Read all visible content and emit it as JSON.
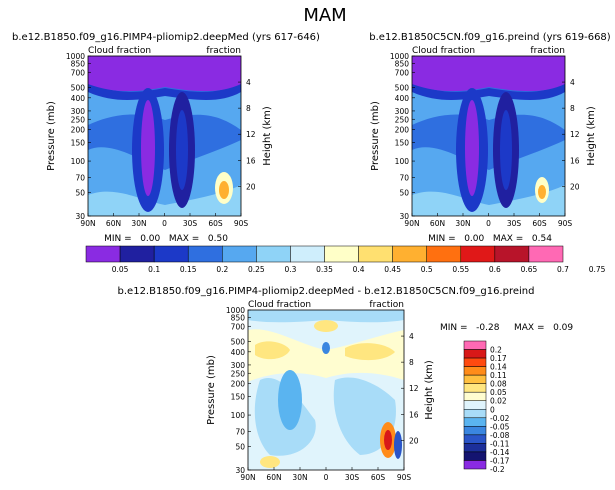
{
  "page_title": "MAM",
  "colors": {
    "main": [
      "#8a2be2",
      "#2020a0",
      "#1c39c8",
      "#2f6fe0",
      "#56a8f0",
      "#8fd3f7",
      "#cfeefc",
      "#ffffc8",
      "#ffe070",
      "#ffb030",
      "#ff7010",
      "#e01818",
      "#b8142a",
      "#ff69b4"
    ],
    "diff": [
      "#8a2be2",
      "#141470",
      "#1c2f9a",
      "#2a55c8",
      "#3a86e0",
      "#5ab4f0",
      "#a8dcf8",
      "#e0f4fc",
      "#fffdd0",
      "#ffe680",
      "#ffc040",
      "#ff8c1a",
      "#ff4a10",
      "#d81818",
      "#ff69b4"
    ]
  },
  "chart_data": [
    {
      "type": "heatmap",
      "title": "b.e12.B1850.f09_g16.PIMP4-pliomip2.deepMed (yrs 617-646)",
      "left_label": "Cloud fraction",
      "right_label": "fraction",
      "ylabel": "Pressure (mb)",
      "ylabel_right": "Height (km)",
      "x_ticks": [
        "90N",
        "60N",
        "30N",
        "0",
        "30S",
        "60S",
        "90S"
      ],
      "y_ticks": [
        "1000",
        "850",
        "700",
        "500",
        "400",
        "300",
        "250",
        "200",
        "150",
        "100",
        "70",
        "50",
        "30"
      ],
      "height_ticks": [
        "4",
        "8",
        "12",
        "16",
        "20"
      ],
      "stats": "MIN =   0.00   MAX =   0.50",
      "min": 0.0,
      "max": 0.5
    },
    {
      "type": "heatmap",
      "title": "b.e12.B1850C5CN.f09_g16.preind (yrs 619-668)",
      "left_label": "Cloud fraction",
      "right_label": "fraction",
      "ylabel": "Pressure (mb)",
      "ylabel_right": "Height (km)",
      "x_ticks": [
        "90N",
        "60N",
        "30N",
        "0",
        "30S",
        "60S",
        "90S"
      ],
      "y_ticks": [
        "1000",
        "850",
        "700",
        "500",
        "400",
        "300",
        "250",
        "200",
        "150",
        "100",
        "70",
        "50",
        "30"
      ],
      "height_ticks": [
        "4",
        "8",
        "12",
        "16",
        "20"
      ],
      "stats": "MIN =   0.00   MAX =   0.54",
      "min": 0.0,
      "max": 0.54
    },
    {
      "type": "heatmap",
      "title": "b.e12.B1850.f09_g16.PIMP4-pliomip2.deepMed - b.e12.B1850C5CN.f09_g16.preind",
      "left_label": "Cloud fraction",
      "right_label": "fraction",
      "ylabel": "Pressure (mb)",
      "ylabel_right": "Height (km)",
      "x_ticks": [
        "90N",
        "60N",
        "30N",
        "0",
        "30S",
        "60S",
        "90S"
      ],
      "y_ticks": [
        "1000",
        "850",
        "700",
        "500",
        "400",
        "300",
        "250",
        "200",
        "150",
        "100",
        "70",
        "50",
        "30"
      ],
      "height_ticks": [
        "4",
        "8",
        "12",
        "16",
        "20"
      ],
      "stats_min": "MIN =   -0.28",
      "stats_max": "MAX =   0.09",
      "min": -0.28,
      "max": 0.09
    }
  ],
  "main_colorbar": {
    "labels": [
      "0.05",
      "0.1",
      "0.15",
      "0.2",
      "0.25",
      "0.3",
      "0.35",
      "0.4",
      "0.45",
      "0.5",
      "0.55",
      "0.6",
      "0.65",
      "0.7",
      "0.75"
    ]
  },
  "diff_colorbar": {
    "labels": [
      "0.2",
      "0.17",
      "0.14",
      "0.11",
      "0.08",
      "0.05",
      "0.02",
      "0",
      "-0.02",
      "-0.05",
      "-0.08",
      "-0.11",
      "-0.14",
      "-0.17",
      "-0.2"
    ]
  }
}
